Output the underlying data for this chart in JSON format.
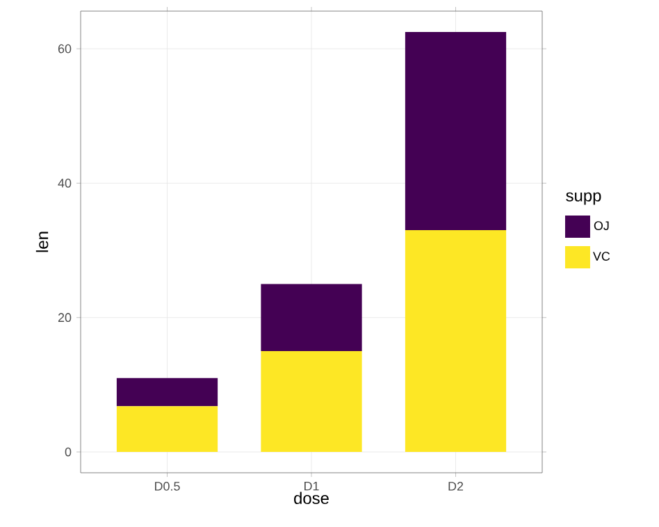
{
  "chart_data": {
    "type": "bar",
    "stacked": true,
    "xlabel": "dose",
    "ylabel": "len",
    "legend_title": "supp",
    "categories": [
      "D0.5",
      "D1",
      "D2"
    ],
    "series": [
      {
        "name": "VC",
        "color": "#fde725",
        "values": [
          6.8,
          15,
          33
        ]
      },
      {
        "name": "OJ",
        "color": "#440154",
        "values": [
          4.2,
          10,
          29.5
        ]
      }
    ],
    "ylim": [
      -3.1,
      65.6
    ],
    "yticks": [
      0,
      20,
      40,
      60
    ],
    "grid": true,
    "legend": "right"
  }
}
